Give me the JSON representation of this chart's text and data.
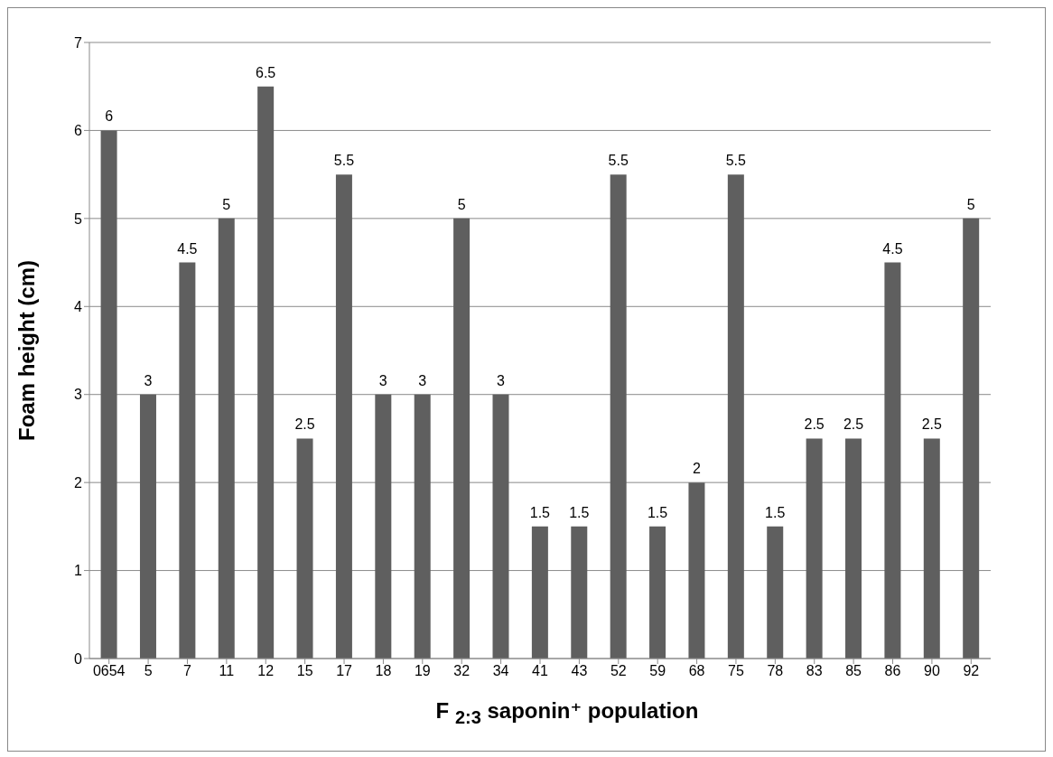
{
  "chart_data": {
    "type": "bar",
    "xlabel": "F $_{2:3}$  saponin⁺ population",
    "ylabel": "Foam height (cm)",
    "categories": [
      "0654",
      "5",
      "7",
      "11",
      "12",
      "15",
      "17",
      "18",
      "19",
      "32",
      "34",
      "41",
      "43",
      "52",
      "59",
      "68",
      "75",
      "78",
      "83",
      "85",
      "86",
      "90",
      "92"
    ],
    "values": [
      6,
      3,
      4.5,
      5,
      6.5,
      2.5,
      5.5,
      3,
      3,
      5,
      3,
      1.5,
      1.5,
      5.5,
      1.5,
      2,
      5.5,
      1.5,
      2.5,
      2.5,
      4.5,
      2.5,
      5
    ],
    "color": "#5f5f5f",
    "ylim": [
      0,
      7
    ],
    "yticks": [
      0,
      1,
      2,
      3,
      4,
      5,
      6,
      7
    ],
    "grid": "y",
    "data_labels": true
  }
}
